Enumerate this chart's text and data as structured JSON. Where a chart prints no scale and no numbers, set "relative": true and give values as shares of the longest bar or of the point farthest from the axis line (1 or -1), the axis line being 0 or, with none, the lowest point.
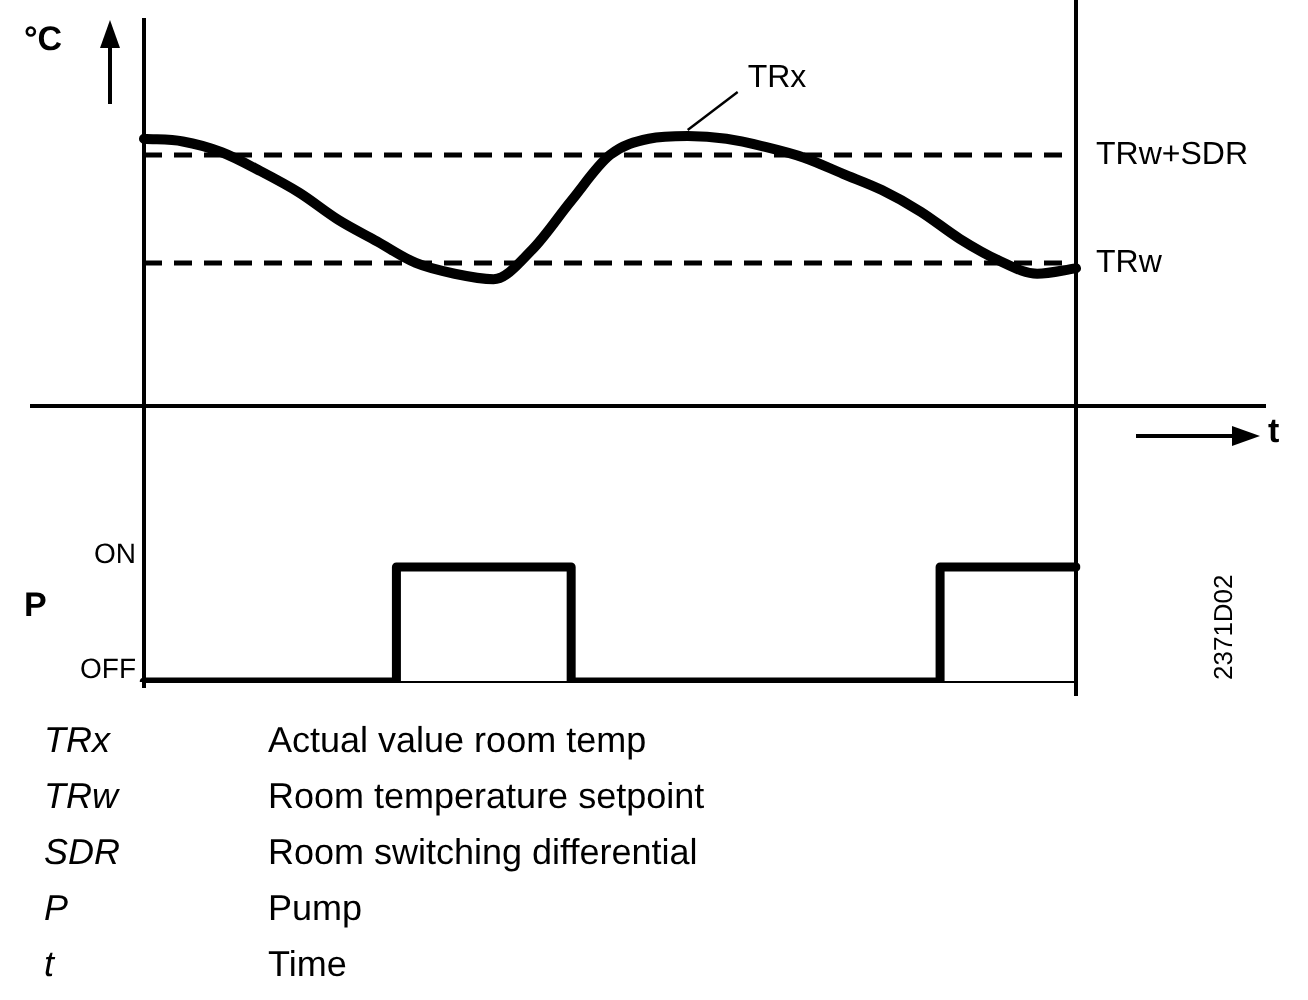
{
  "chart_data": [
    {
      "type": "line",
      "relative": true,
      "ylabel": "°C",
      "tick_labels": false,
      "marker": "none",
      "categories": [
        null,
        null,
        null,
        null,
        null,
        null,
        null,
        null,
        null,
        null,
        null,
        null,
        null,
        null,
        null,
        null,
        null,
        null,
        null,
        null,
        null,
        null,
        null,
        null,
        null
      ],
      "series": [
        {
          "name": "TRx",
          "color": "#000000",
          "values": [
            0.99,
            0.98,
            0.94,
            0.87,
            0.79,
            0.69,
            0.61,
            0.53,
            0.49,
            0.47,
            0.58,
            0.76,
            0.93,
            0.99,
            1,
            0.99,
            0.96,
            0.92,
            0.86,
            0.8,
            0.72,
            0.62,
            0.54,
            0.49,
            0.51
          ]
        }
      ],
      "ref_lines": [
        {
          "axis": "y",
          "value": 0.93,
          "label": "TRw+SDR",
          "color": "#000000",
          "line_style": "dashed"
        },
        {
          "axis": "y",
          "value": 0.53,
          "label": "TRw",
          "color": "#000000",
          "line_style": "dashed"
        }
      ]
    },
    {
      "type": "step",
      "xlabel": "t",
      "ylabel": "P",
      "tick_labels": false,
      "marker": "none",
      "categories": [
        null,
        null,
        null,
        null,
        null,
        null,
        null,
        null,
        null,
        null,
        null,
        null,
        null,
        null,
        null,
        null,
        null,
        null,
        null,
        null,
        null,
        null,
        null,
        null,
        null,
        null,
        null,
        null,
        null,
        null,
        null,
        null,
        null,
        null,
        null,
        null,
        null,
        null,
        null,
        null,
        null,
        null,
        null,
        null,
        null,
        null,
        null,
        null,
        null
      ],
      "relative": true,
      "series": [
        {
          "color": "#000000",
          "values": [
            0,
            0,
            0,
            0,
            0,
            0,
            0,
            0,
            0,
            0,
            0,
            0,
            0,
            0,
            1,
            1,
            1,
            1,
            1,
            1,
            1,
            1,
            1,
            0,
            0,
            0,
            0,
            0,
            0,
            0,
            0,
            0,
            0,
            0,
            0,
            0,
            0,
            0,
            0,
            0,
            0,
            0,
            1,
            1,
            1,
            1,
            1,
            1,
            1
          ]
        }
      ],
      "annotations": [
        "2371D02",
        "ON",
        "OFF",
        "TRx Actual value room temp",
        "TRw Room temperature setpoint",
        "SDR Room switching differential",
        "P Pump",
        "t Time"
      ]
    }
  ]
}
